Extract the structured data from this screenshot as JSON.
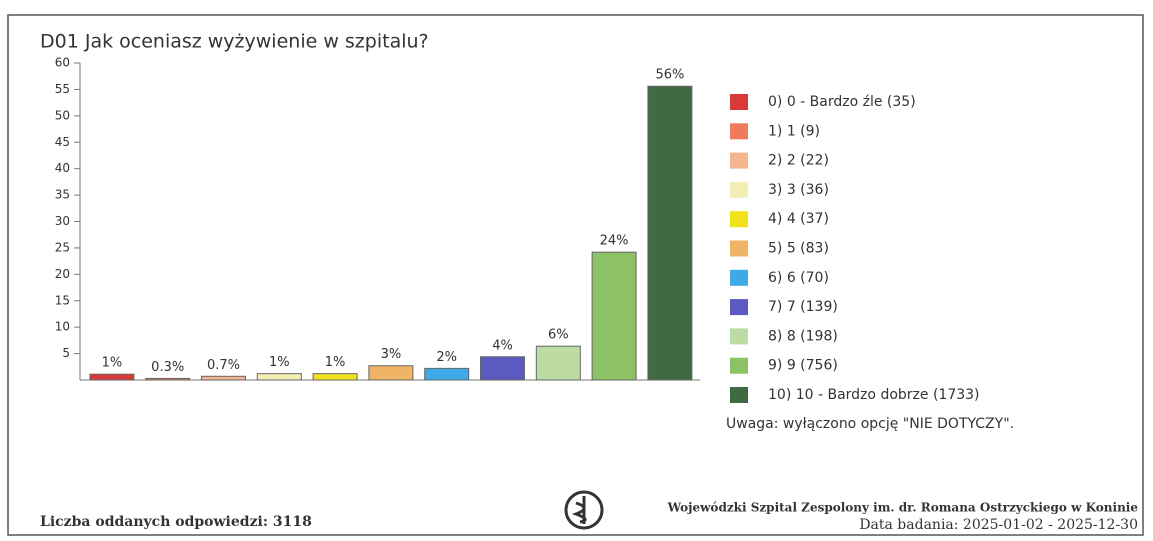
{
  "chart_data": {
    "type": "bar",
    "title": "D01 Jak oceniasz wyżywienie w szpitalu?",
    "categories": [
      "0) 0 - Bardzo źle (35)",
      "1) 1 (9)",
      "2) 2 (22)",
      "3) 3 (36)",
      "4) 4 (37)",
      "5) 5 (83)",
      "6) 6 (70)",
      "7) 7 (139)",
      "8) 8 (198)",
      "9) 9 (756)",
      "10) 10 - Bardzo dobrze (1733)"
    ],
    "values": [
      1.1,
      0.3,
      0.7,
      1.2,
      1.2,
      2.7,
      2.2,
      4.4,
      6.4,
      24.2,
      55.6
    ],
    "value_labels": [
      "1%",
      "0.3%",
      "0.7%",
      "1%",
      "1%",
      "3%",
      "2%",
      "4%",
      "6%",
      "24%",
      "56%"
    ],
    "colors": [
      "#d83a3a",
      "#ee7b5c",
      "#f3b68e",
      "#f3efb4",
      "#f1e21c",
      "#f0b466",
      "#3fa8e6",
      "#5a5ac0",
      "#bcdca4",
      "#8cc265",
      "#3f6a42"
    ],
    "ylim": [
      0,
      60
    ],
    "yticks": [
      5,
      10,
      15,
      20,
      25,
      30,
      35,
      40,
      45,
      50,
      55,
      60
    ],
    "note": "Uwaga: wyłączono opcję \"NIE DOTYCZY\".",
    "responses": "Liczba oddanych odpowiedzi: 3118",
    "institution": "Wojewódzki Szpital Zespolony im. dr. Romana Ostrzyckiego w Koninie",
    "dates": "Data badania: 2025-01-02 - 2025-12-30"
  }
}
